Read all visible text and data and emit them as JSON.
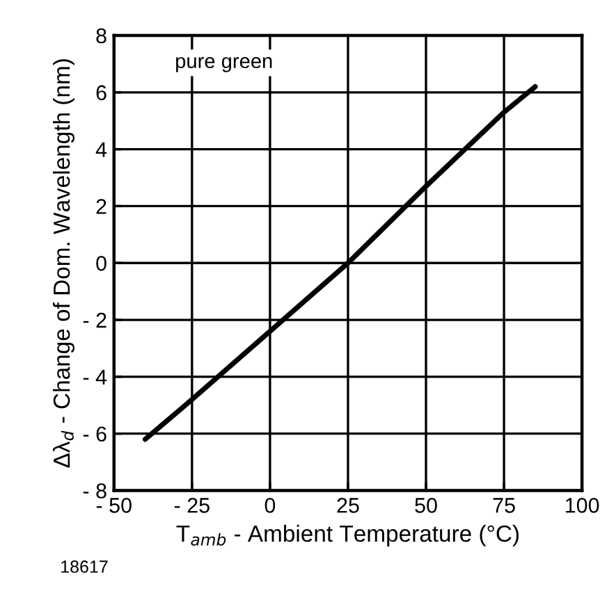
{
  "chart_data": {
    "type": "line",
    "xlabel": "T$_{amb}$ - Ambient Temperature (°C)",
    "ylabel": "Δλ$_{d}$ - Change of Dom. Wavelength (nm)",
    "annotations": [
      "pure green",
      "18617"
    ],
    "x": [
      -40,
      -25,
      0,
      25,
      50,
      75,
      85
    ],
    "series": [
      {
        "color": "#000000",
        "values": [
          -6.2,
          -4.8,
          -2.4,
          0,
          2.7,
          5.3,
          6.2
        ]
      }
    ],
    "xlim": [
      -50,
      100
    ],
    "xticks": [
      {
        "value": -50,
        "label": "- 50"
      },
      {
        "value": -25,
        "label": "- 25"
      },
      0,
      25,
      50,
      75,
      100
    ],
    "ylim": [
      -8,
      8
    ],
    "yticks": [
      {
        "value": -8,
        "label": "- 8"
      },
      {
        "value": -6,
        "label": "- 6"
      },
      {
        "value": -4,
        "label": "- 4"
      },
      {
        "value": -2,
        "label": "- 2"
      },
      0,
      2,
      4,
      6,
      8
    ],
    "grid": true,
    "legend": false,
    "marker": "none",
    "line_style": "solid"
  }
}
